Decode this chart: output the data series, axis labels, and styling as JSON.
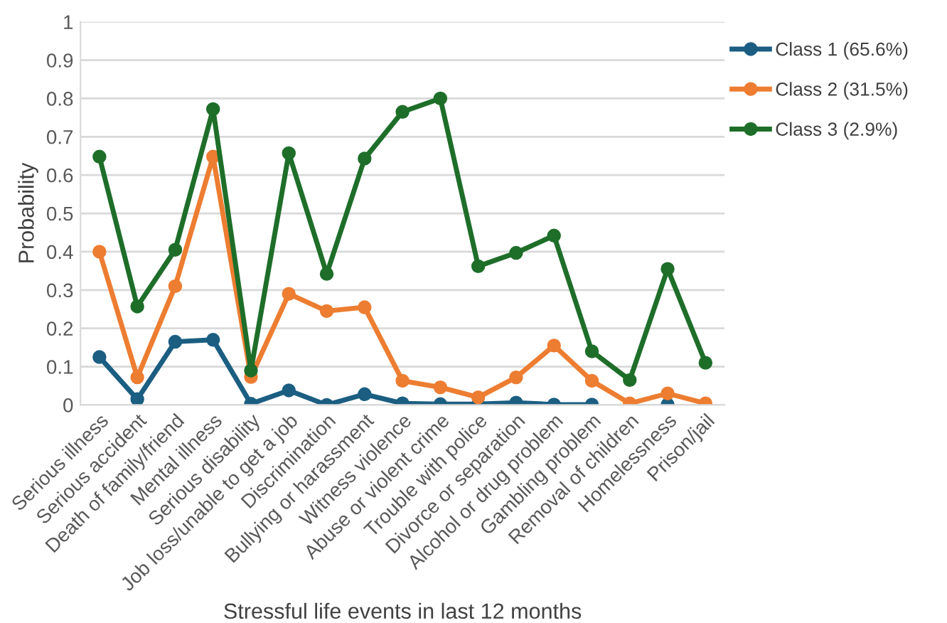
{
  "chart_data": {
    "type": "line",
    "xlabel": "Stressful life events in last 12 months",
    "ylabel": "Probability",
    "categories": [
      "Serious illness",
      "Serious accident",
      "Death of family/friend",
      "Mental illness",
      "Serious disability",
      "Job loss/unable to get a job",
      "Discrimination",
      "Bullying or harassment",
      "Witness violence",
      "Abuse or violent crime",
      "Trouble with police",
      "Divorce or separation",
      "Alcohol or drug problem",
      "Gambling problem",
      "Removal of children",
      "Homelessness",
      "Prison/jail"
    ],
    "series": [
      {
        "name": "Class 1 (65.6%)",
        "color": "#1b5e82",
        "values": [
          0.125,
          0.015,
          0.165,
          0.17,
          0.003,
          0.038,
          0.0,
          0.028,
          0.004,
          0.002,
          0.002,
          0.006,
          0.001,
          0.001,
          null,
          0.001,
          null
        ]
      },
      {
        "name": "Class 2 (31.5%)",
        "color": "#ed7d31",
        "values": [
          0.4,
          0.072,
          0.31,
          0.648,
          0.073,
          0.29,
          0.245,
          0.255,
          0.063,
          0.046,
          0.02,
          0.072,
          0.155,
          0.063,
          0.004,
          0.03,
          0.004
        ]
      },
      {
        "name": "Class 3 (2.9%)",
        "color": "#1e6e2a",
        "values": [
          0.648,
          0.257,
          0.405,
          0.772,
          0.09,
          0.657,
          0.342,
          0.643,
          0.765,
          0.8,
          0.362,
          0.397,
          0.442,
          0.14,
          0.065,
          0.355,
          0.11
        ]
      }
    ],
    "ylim": [
      0,
      1
    ],
    "yticks": [
      0,
      0.1,
      0.2,
      0.3,
      0.4,
      0.5,
      0.6,
      0.7,
      0.8,
      0.9,
      1
    ],
    "grid": "y",
    "legend": "right",
    "marker": "circle",
    "line_style": "solid"
  }
}
